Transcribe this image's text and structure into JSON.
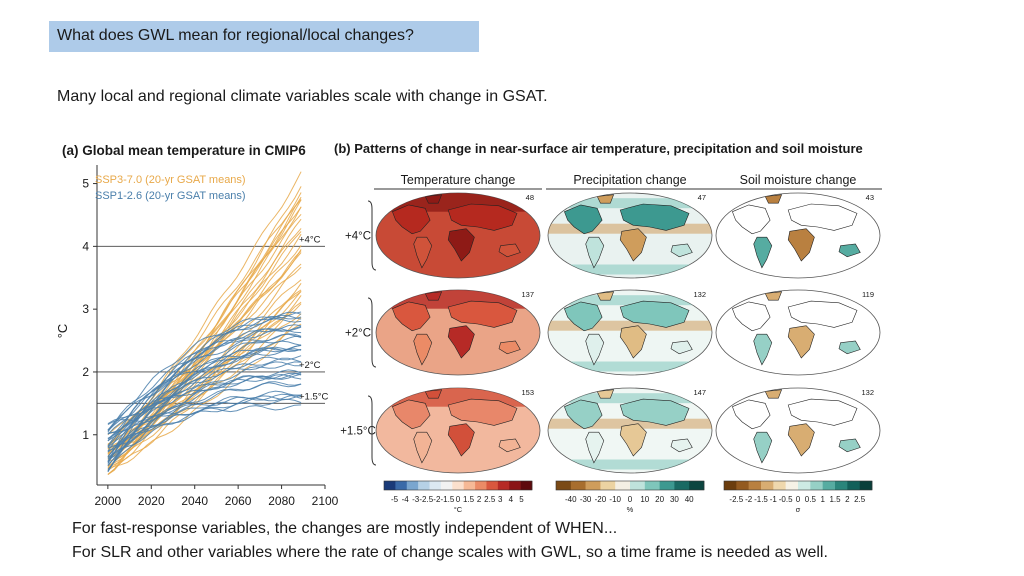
{
  "slide": {
    "title": "What does GWL mean for regional/local changes?",
    "subtitle": "Many local and regional climate variables scale with change in GSAT.",
    "footer_line1": "For fast-response variables, the changes are mostly independent of WHEN...",
    "footer_line2": "For SLR and other variables where the rate of change scales with GWL, so a time frame is needed as well."
  },
  "colors": {
    "ssp370": "#e8a94a",
    "ssp126": "#4a7fab",
    "title_box": "#aecbe9"
  },
  "chart_data": [
    {
      "type": "line",
      "panel_title": "(a) Global mean temperature in CMIP6",
      "ylabel": "°C",
      "xlabel": "",
      "xlim": [
        1995,
        2100
      ],
      "ylim": [
        0.2,
        5.2
      ],
      "x_ticks": [
        "2000",
        "2020",
        "2040",
        "2060",
        "2080",
        "2100"
      ],
      "y_ticks": [
        "1",
        "2",
        "3",
        "4",
        "5"
      ],
      "reference_lines": [
        {
          "value": 4.0,
          "label": "+4°C"
        },
        {
          "value": 2.0,
          "label": "+2°C"
        },
        {
          "value": 1.5,
          "label": "+1.5°C"
        }
      ],
      "legend": [
        "SSP3-7.0 (20-yr GSAT means)",
        "SSP1-2.6 (20-yr GSAT means)"
      ],
      "series": [
        {
          "name": "SSP3-7.0 (20-yr GSAT means)",
          "color": "#e8a94a",
          "x": [
            2000,
            2089
          ],
          "start_range": [
            0.35,
            1.05
          ],
          "end_range": [
            2.6,
            5.3
          ],
          "n_models": 30
        },
        {
          "name": "SSP1-2.6 (20-yr GSAT means)",
          "color": "#4a7fab",
          "x": [
            2000,
            2089
          ],
          "start_range": [
            0.4,
            1.2
          ],
          "end_range": [
            1.35,
            3.15
          ],
          "n_models": 35
        }
      ]
    },
    {
      "type": "heatmap",
      "panel_title": "(b) Patterns of change in near-surface air temperature, precipitation and soil moisture",
      "columns": [
        "Temperature change",
        "Precipitation change",
        "Soil moisture change"
      ],
      "rows": [
        "+4°C",
        "+2°C",
        "+1.5°C"
      ],
      "model_counts": [
        [
          "48",
          "47",
          "43"
        ],
        [
          "137",
          "132",
          "119"
        ],
        [
          "153",
          "147",
          "132"
        ]
      ],
      "colorbars": [
        {
          "ticks": [
            "-5",
            "-4",
            "-3",
            "-2.5",
            "-2",
            "-1.5",
            "0",
            "1.5",
            "2",
            "2.5",
            "3",
            "4",
            "5"
          ],
          "unit": "°C",
          "colors": [
            "#1a3a78",
            "#3a6aa8",
            "#7aa6cf",
            "#b6d1e6",
            "#dce9f2",
            "#f2f2f2",
            "#fbe0cd",
            "#f6b996",
            "#eb8b66",
            "#d9573e",
            "#b62a26",
            "#8a1416",
            "#5e0a0e"
          ]
        },
        {
          "ticks": [
            "-40",
            "-30",
            "-20",
            "-10",
            "0",
            "10",
            "20",
            "30",
            "40"
          ],
          "unit": "%",
          "colors": [
            "#7a4a16",
            "#a86e2e",
            "#cf9d5c",
            "#ecd3a2",
            "#f4efe4",
            "#bfe3dc",
            "#7fc6bb",
            "#3d9990",
            "#1a6a63",
            "#0c4540"
          ]
        },
        {
          "ticks": [
            "-2.5",
            "-2",
            "-1.5",
            "-1",
            "-0.5",
            "0",
            "0.5",
            "1",
            "1.5",
            "2",
            "2.5"
          ],
          "unit": "σ",
          "colors": [
            "#6b3d0e",
            "#935a20",
            "#b98040",
            "#d8ad72",
            "#efd8ad",
            "#f6f2e6",
            "#cdeae4",
            "#96d0c6",
            "#56aca1",
            "#2a857b",
            "#12605a",
            "#0a3f3b"
          ]
        }
      ]
    }
  ]
}
